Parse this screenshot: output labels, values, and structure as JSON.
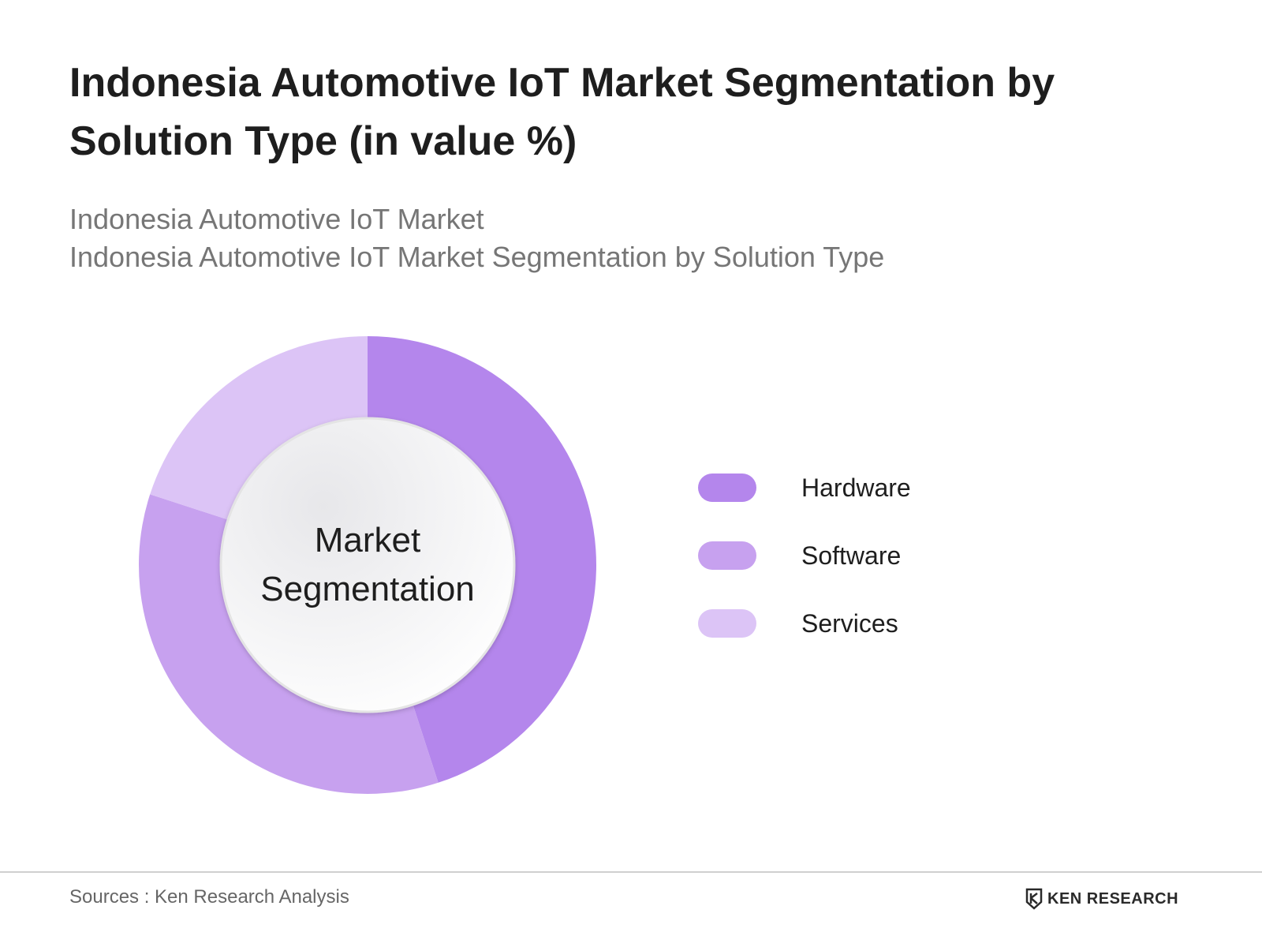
{
  "header": {
    "title": "Indonesia Automotive IoT Market Segmentation by Solution Type (in value %)",
    "subtitle_line1": "Indonesia Automotive IoT Market",
    "subtitle_line2": "Indonesia Automotive IoT Market Segmentation by Solution Type"
  },
  "chart_data": {
    "type": "pie",
    "variant": "donut",
    "center_label_line1": "Market",
    "center_label_line2": "Segmentation",
    "categories": [
      "Hardware",
      "Software",
      "Services"
    ],
    "values": [
      45,
      35,
      20
    ],
    "colors": [
      "#b486ec",
      "#c7a1ef",
      "#dcc4f6"
    ],
    "legend_position": "right"
  },
  "footer": {
    "source": "Sources : Ken Research Analysis",
    "brand_text": "KEN RESEARCH",
    "brand_logo_icon": "ken-research-logo-icon"
  }
}
